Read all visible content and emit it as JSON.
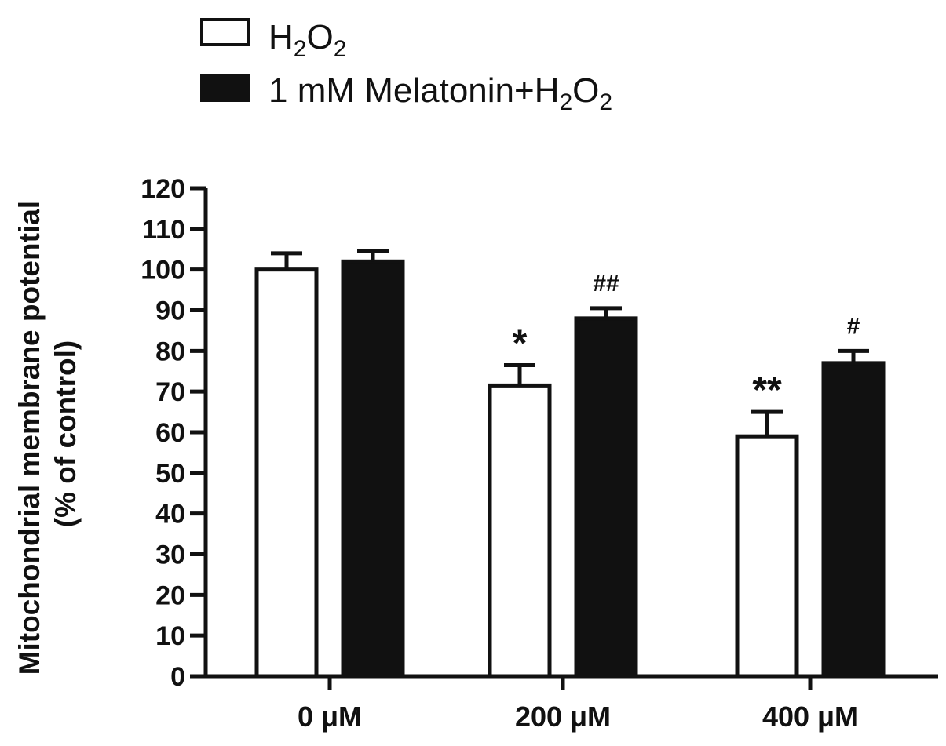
{
  "chart_data": {
    "type": "bar",
    "categories": [
      "0 μM",
      "200 μM",
      "400 μM"
    ],
    "series": [
      {
        "name": "H2O2",
        "legend_label": "H",
        "legend_sub1": "2",
        "legend_mid": "O",
        "legend_sub2": "2",
        "values": [
          100,
          71.5,
          59
        ],
        "errors": [
          4,
          5,
          6
        ],
        "fill": "#ffffff"
      },
      {
        "name": "1 mM Melatonin+H2O2",
        "legend_label": "1 mM Melatonin+H",
        "legend_sub1": "2",
        "legend_mid": "O",
        "legend_sub2": "2",
        "values": [
          102,
          88,
          77
        ],
        "errors": [
          2.5,
          2.5,
          3
        ],
        "fill": "#111111"
      }
    ],
    "annotations": [
      {
        "series": 0,
        "category": 1,
        "text": "*"
      },
      {
        "series": 1,
        "category": 1,
        "text": "##"
      },
      {
        "series": 0,
        "category": 2,
        "text": "**"
      },
      {
        "series": 1,
        "category": 2,
        "text": "#"
      }
    ],
    "ylabel_line1": "Mitochondrial membrane potential",
    "ylabel_line2": "(% of control)",
    "xlabel": "",
    "ylim": [
      0,
      120
    ],
    "yticks": [
      0,
      10,
      20,
      30,
      40,
      50,
      60,
      70,
      80,
      90,
      100,
      110,
      120
    ],
    "grid": false,
    "legend_position": "top-left"
  }
}
